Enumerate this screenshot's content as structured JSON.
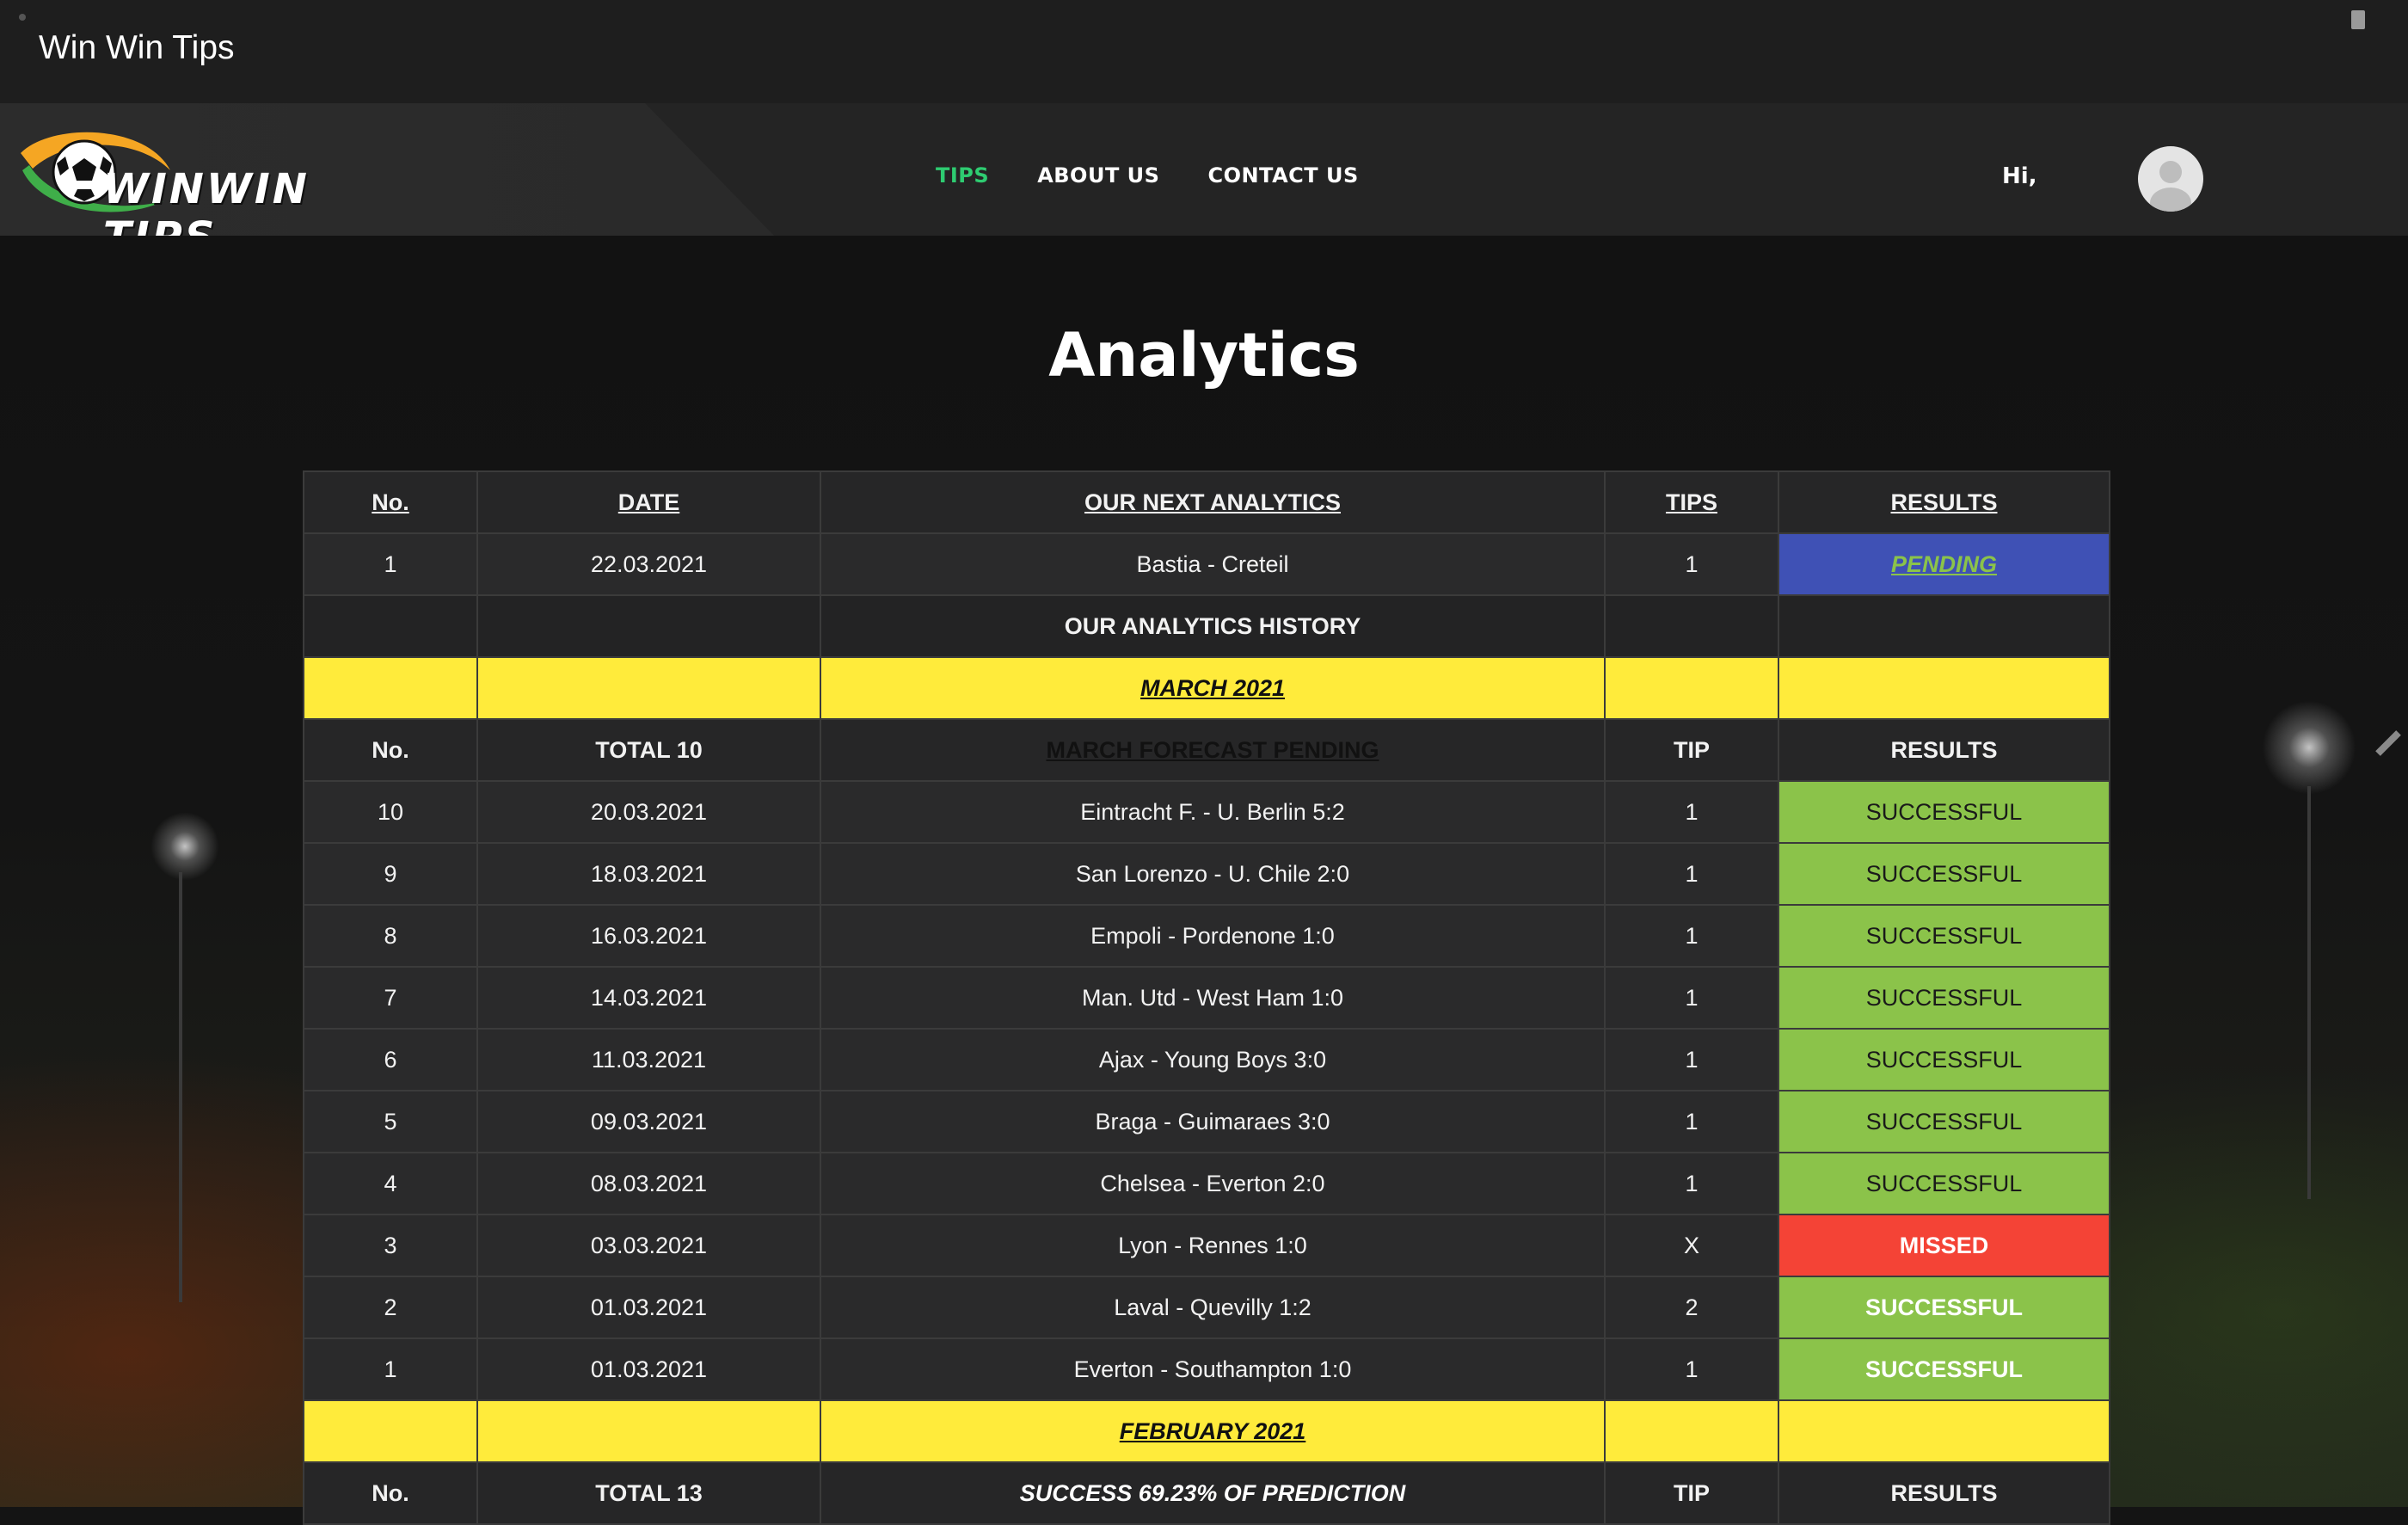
{
  "app": {
    "title": "Win Win Tips"
  },
  "header": {
    "logo_text": "WINWIN TIPS",
    "nav": [
      {
        "label": "TIPS",
        "active": true
      },
      {
        "label": "ABOUT US",
        "active": false
      },
      {
        "label": "CONTACT US",
        "active": false
      }
    ],
    "greeting": "Hi,"
  },
  "page": {
    "title": "Analytics"
  },
  "table": {
    "head": {
      "no": "No.",
      "date": "DATE",
      "match": "OUR NEXT ANALYTICS",
      "tip": "TIPS",
      "result": "RESULTS"
    },
    "next": [
      {
        "no": "1",
        "date": "22.03.2021",
        "match": "Bastia - Creteil",
        "tip": "1",
        "result": "PENDING"
      }
    ],
    "history_label": "OUR ANALYTICS HISTORY",
    "march": {
      "month": "MARCH 2021",
      "sub": {
        "no": "No.",
        "total": "TOTAL 10",
        "status": "MARCH FORECAST PENDING",
        "tip": "TIP",
        "result": "RESULTS"
      },
      "rows": [
        {
          "no": "10",
          "date": "20.03.2021",
          "match": "Eintracht F. - U. Berlin 5:2",
          "tip": "1",
          "result": "SUCCESSFUL"
        },
        {
          "no": "9",
          "date": "18.03.2021",
          "match": "San Lorenzo - U. Chile 2:0",
          "tip": "1",
          "result": "SUCCESSFUL"
        },
        {
          "no": "8",
          "date": "16.03.2021",
          "match": "Empoli - Pordenone 1:0",
          "tip": "1",
          "result": "SUCCESSFUL"
        },
        {
          "no": "7",
          "date": "14.03.2021",
          "match": "Man. Utd - West Ham 1:0",
          "tip": "1",
          "result": "SUCCESSFUL"
        },
        {
          "no": "6",
          "date": "11.03.2021",
          "match": "Ajax - Young Boys 3:0",
          "tip": "1",
          "result": "SUCCESSFUL"
        },
        {
          "no": "5",
          "date": "09.03.2021",
          "match": "Braga - Guimaraes 3:0",
          "tip": "1",
          "result": "SUCCESSFUL"
        },
        {
          "no": "4",
          "date": "08.03.2021",
          "match": "Chelsea - Everton 2:0",
          "tip": "1",
          "result": "SUCCESSFUL"
        },
        {
          "no": "3",
          "date": "03.03.2021",
          "match": "Lyon - Rennes 1:0",
          "tip": "X",
          "result": "MISSED"
        },
        {
          "no": "2",
          "date": "01.03.2021",
          "match": "Laval - Quevilly 1:2",
          "tip": "2",
          "result": "SUCCESSFUL"
        },
        {
          "no": "1",
          "date": "01.03.2021",
          "match": "Everton - Southampton 1:0",
          "tip": "1",
          "result": "SUCCESSFUL"
        }
      ]
    },
    "february": {
      "month": "FEBRUARY 2021",
      "sub": {
        "no": "No.",
        "total": "TOTAL 13",
        "status": "SUCCESS 69.23% OF PREDICTION",
        "tip": "TIP",
        "result": "RESULTS"
      }
    }
  },
  "colors": {
    "accent_nav": "#2ecc71",
    "success": "#8bc34a",
    "missed": "#f44336",
    "pending": "#3f51b5",
    "month_band": "#ffeb3b",
    "forecast": "#00bcd4"
  }
}
